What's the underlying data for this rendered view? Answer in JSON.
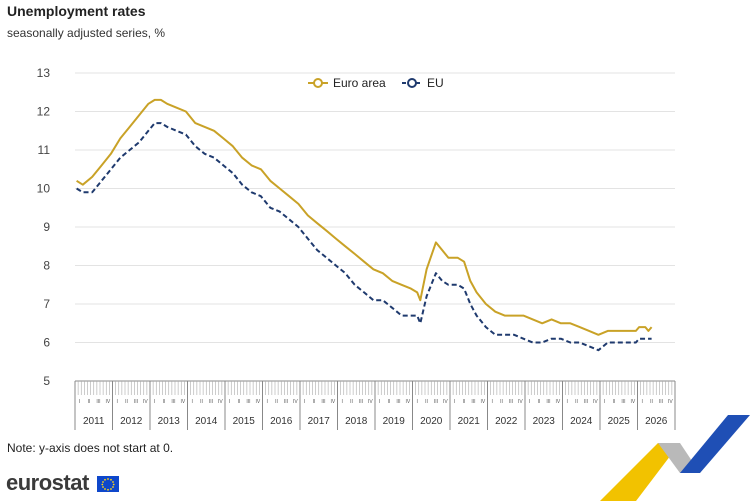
{
  "chart_data": {
    "type": "line",
    "title": "Unemployment rates",
    "subtitle": "seasonally adjusted series, %",
    "ylim": [
      5,
      13
    ],
    "yticks": [
      "5",
      "6",
      "7",
      "8",
      "9",
      "10",
      "11",
      "12",
      "13"
    ],
    "years": [
      "2011",
      "2012",
      "2013",
      "2014",
      "2015",
      "2016",
      "2017",
      "2018",
      "2019",
      "2020",
      "2021",
      "2022",
      "2023",
      "2024",
      "2025",
      "2026"
    ],
    "quarter_labels": [
      "I",
      "II",
      "III",
      "IV"
    ],
    "x_start": "2011-01",
    "grid": "horizontal",
    "legend_position": "top-center",
    "series": [
      {
        "name": "Euro area",
        "color": "#c9a227",
        "style": "solid",
        "points": [
          [
            "2011-01",
            10.2
          ],
          [
            "2011-03",
            10.1
          ],
          [
            "2011-06",
            10.3
          ],
          [
            "2011-09",
            10.6
          ],
          [
            "2011-12",
            10.9
          ],
          [
            "2012-03",
            11.3
          ],
          [
            "2012-06",
            11.6
          ],
          [
            "2012-09",
            11.9
          ],
          [
            "2012-12",
            12.2
          ],
          [
            "2013-02",
            12.3
          ],
          [
            "2013-04",
            12.3
          ],
          [
            "2013-06",
            12.2
          ],
          [
            "2013-09",
            12.1
          ],
          [
            "2013-12",
            12.0
          ],
          [
            "2014-03",
            11.7
          ],
          [
            "2014-06",
            11.6
          ],
          [
            "2014-09",
            11.5
          ],
          [
            "2014-12",
            11.3
          ],
          [
            "2015-03",
            11.1
          ],
          [
            "2015-06",
            10.8
          ],
          [
            "2015-09",
            10.6
          ],
          [
            "2015-12",
            10.5
          ],
          [
            "2016-03",
            10.2
          ],
          [
            "2016-06",
            10.0
          ],
          [
            "2016-09",
            9.8
          ],
          [
            "2016-12",
            9.6
          ],
          [
            "2017-03",
            9.3
          ],
          [
            "2017-06",
            9.1
          ],
          [
            "2017-09",
            8.9
          ],
          [
            "2017-12",
            8.7
          ],
          [
            "2018-03",
            8.5
          ],
          [
            "2018-06",
            8.3
          ],
          [
            "2018-09",
            8.1
          ],
          [
            "2018-12",
            7.9
          ],
          [
            "2019-03",
            7.8
          ],
          [
            "2019-06",
            7.6
          ],
          [
            "2019-09",
            7.5
          ],
          [
            "2019-12",
            7.4
          ],
          [
            "2020-02",
            7.3
          ],
          [
            "2020-03",
            7.1
          ],
          [
            "2020-05",
            7.9
          ],
          [
            "2020-08",
            8.6
          ],
          [
            "2020-10",
            8.4
          ],
          [
            "2020-12",
            8.2
          ],
          [
            "2021-03",
            8.2
          ],
          [
            "2021-05",
            8.1
          ],
          [
            "2021-07",
            7.6
          ],
          [
            "2021-09",
            7.3
          ],
          [
            "2021-12",
            7.0
          ],
          [
            "2022-03",
            6.8
          ],
          [
            "2022-06",
            6.7
          ],
          [
            "2022-09",
            6.7
          ],
          [
            "2022-12",
            6.7
          ],
          [
            "2023-03",
            6.6
          ],
          [
            "2023-06",
            6.5
          ],
          [
            "2023-09",
            6.6
          ],
          [
            "2023-12",
            6.5
          ],
          [
            "2024-03",
            6.5
          ],
          [
            "2024-06",
            6.4
          ],
          [
            "2024-09",
            6.3
          ],
          [
            "2024-12",
            6.2
          ],
          [
            "2025-03",
            6.3
          ],
          [
            "2025-06",
            6.3
          ],
          [
            "2025-09",
            6.3
          ],
          [
            "2025-12",
            6.3
          ],
          [
            "2026-01",
            6.4
          ],
          [
            "2026-03",
            6.4
          ],
          [
            "2026-04",
            6.3
          ],
          [
            "2026-05",
            6.4
          ]
        ]
      },
      {
        "name": "EU",
        "color": "#1f3a6e",
        "style": "dashed",
        "points": [
          [
            "2011-01",
            10.0
          ],
          [
            "2011-03",
            9.9
          ],
          [
            "2011-06",
            9.9
          ],
          [
            "2011-09",
            10.2
          ],
          [
            "2011-12",
            10.5
          ],
          [
            "2012-03",
            10.8
          ],
          [
            "2012-06",
            11.0
          ],
          [
            "2012-09",
            11.2
          ],
          [
            "2012-12",
            11.5
          ],
          [
            "2013-02",
            11.7
          ],
          [
            "2013-04",
            11.7
          ],
          [
            "2013-06",
            11.6
          ],
          [
            "2013-09",
            11.5
          ],
          [
            "2013-12",
            11.4
          ],
          [
            "2014-03",
            11.1
          ],
          [
            "2014-06",
            10.9
          ],
          [
            "2014-09",
            10.8
          ],
          [
            "2014-12",
            10.6
          ],
          [
            "2015-03",
            10.4
          ],
          [
            "2015-06",
            10.1
          ],
          [
            "2015-09",
            9.9
          ],
          [
            "2015-12",
            9.8
          ],
          [
            "2016-03",
            9.5
          ],
          [
            "2016-06",
            9.4
          ],
          [
            "2016-09",
            9.2
          ],
          [
            "2016-12",
            9.0
          ],
          [
            "2017-03",
            8.7
          ],
          [
            "2017-06",
            8.4
          ],
          [
            "2017-09",
            8.2
          ],
          [
            "2017-12",
            8.0
          ],
          [
            "2018-03",
            7.8
          ],
          [
            "2018-06",
            7.5
          ],
          [
            "2018-09",
            7.3
          ],
          [
            "2018-12",
            7.1
          ],
          [
            "2019-03",
            7.1
          ],
          [
            "2019-06",
            6.9
          ],
          [
            "2019-09",
            6.7
          ],
          [
            "2019-12",
            6.7
          ],
          [
            "2020-02",
            6.7
          ],
          [
            "2020-03",
            6.5
          ],
          [
            "2020-05",
            7.2
          ],
          [
            "2020-08",
            7.8
          ],
          [
            "2020-10",
            7.6
          ],
          [
            "2020-12",
            7.5
          ],
          [
            "2021-03",
            7.5
          ],
          [
            "2021-05",
            7.4
          ],
          [
            "2021-07",
            7.0
          ],
          [
            "2021-09",
            6.7
          ],
          [
            "2021-12",
            6.4
          ],
          [
            "2022-03",
            6.2
          ],
          [
            "2022-06",
            6.2
          ],
          [
            "2022-09",
            6.2
          ],
          [
            "2022-12",
            6.1
          ],
          [
            "2023-03",
            6.0
          ],
          [
            "2023-06",
            6.0
          ],
          [
            "2023-09",
            6.1
          ],
          [
            "2023-12",
            6.1
          ],
          [
            "2024-03",
            6.0
          ],
          [
            "2024-06",
            6.0
          ],
          [
            "2024-09",
            5.9
          ],
          [
            "2024-12",
            5.8
          ],
          [
            "2025-03",
            6.0
          ],
          [
            "2025-06",
            6.0
          ],
          [
            "2025-09",
            6.0
          ],
          [
            "2025-12",
            6.0
          ],
          [
            "2026-01",
            6.1
          ],
          [
            "2026-03",
            6.1
          ],
          [
            "2026-05",
            6.1
          ]
        ]
      }
    ]
  },
  "note": "Note: y-axis does not start at 0.",
  "brand": "eurostat"
}
